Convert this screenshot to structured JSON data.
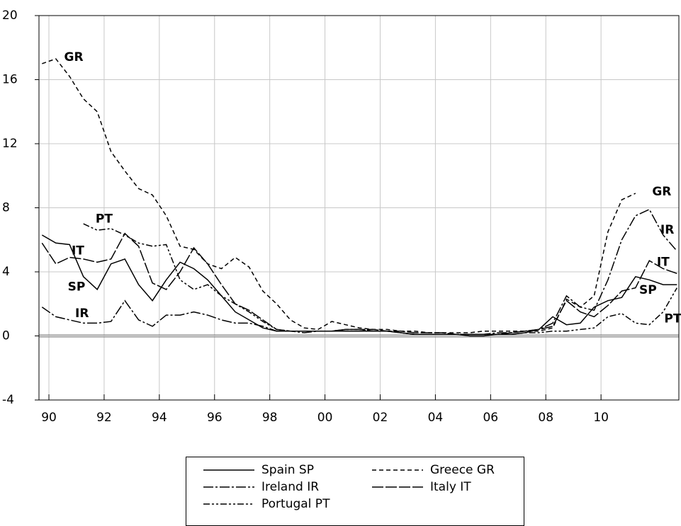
{
  "chart_data": {
    "type": "line",
    "x": [
      1989.75,
      1990.25,
      1990.75,
      1991.25,
      1991.75,
      1992.25,
      1992.75,
      1993.25,
      1993.75,
      1994.25,
      1994.75,
      1995.25,
      1995.75,
      1996.25,
      1996.75,
      1997.25,
      1997.75,
      1998.25,
      1998.75,
      1999.25,
      1999.75,
      2000.25,
      2000.75,
      2001.25,
      2001.75,
      2002.25,
      2002.75,
      2003.25,
      2003.75,
      2004.25,
      2004.75,
      2005.25,
      2005.75,
      2006.25,
      2006.75,
      2007.25,
      2007.75,
      2008.25,
      2008.75,
      2009.25,
      2009.75,
      2010.25,
      2010.75,
      2011.25,
      2011.75,
      2012.25,
      2012.75
    ],
    "xlim": [
      1989.64,
      2012.82
    ],
    "xticks": [
      {
        "value": 1990,
        "label": "90"
      },
      {
        "value": 1992,
        "label": "92"
      },
      {
        "value": 1994,
        "label": "94"
      },
      {
        "value": 1996,
        "label": "96"
      },
      {
        "value": 1998,
        "label": "98"
      },
      {
        "value": 2000,
        "label": "00"
      },
      {
        "value": 2002,
        "label": "02"
      },
      {
        "value": 2004,
        "label": "04"
      },
      {
        "value": 2006,
        "label": "06"
      },
      {
        "value": 2008,
        "label": "08"
      },
      {
        "value": 2010,
        "label": "10"
      }
    ],
    "ylim": [
      -4,
      20
    ],
    "yticks": [
      -4,
      0,
      4,
      8,
      12,
      16,
      20
    ],
    "grid": true,
    "series": [
      {
        "name": "Spain SP",
        "color": "#000000",
        "dash": "none",
        "values": [
          6.3,
          5.8,
          5.7,
          3.7,
          2.9,
          4.5,
          4.8,
          3.2,
          2.2,
          3.5,
          4.6,
          4.2,
          3.5,
          2.5,
          1.5,
          1.0,
          0.5,
          0.3,
          0.3,
          0.3,
          0.3,
          0.3,
          0.3,
          0.3,
          0.3,
          0.3,
          0.2,
          0.1,
          0.1,
          0.1,
          0.1,
          0.0,
          0.0,
          0.1,
          0.1,
          0.2,
          0.4,
          1.2,
          0.7,
          0.8,
          1.8,
          2.2,
          2.4,
          3.7,
          3.5,
          3.2,
          3.2
        ]
      },
      {
        "name": "Greece GR",
        "color": "#000000",
        "dash": "6,4",
        "values": [
          17,
          17.3,
          16.2,
          14.8,
          14,
          11.5,
          10.3,
          9.2,
          8.8,
          7.5,
          5.6,
          5.4,
          4.5,
          4.2,
          4.9,
          4.3,
          2.8,
          2,
          1,
          0.5,
          0.4,
          0.9,
          0.7,
          0.5,
          0.4,
          0.4,
          0.3,
          0.3,
          0.2,
          0.2,
          0.2,
          0.2,
          0.3,
          0.3,
          0.3,
          0.3,
          0.3,
          0.5,
          2.3,
          1.8,
          2.5,
          6.5,
          8.5,
          8.9,
          null,
          null,
          null
        ]
      },
      {
        "name": "Ireland IR",
        "color": "#000000",
        "dash": "14,3,3,3",
        "values": [
          1.8,
          1.2,
          1.0,
          0.8,
          0.8,
          0.9,
          2.2,
          1.0,
          0.6,
          1.3,
          1.3,
          1.5,
          1.3,
          1.0,
          0.8,
          0.8,
          0.6,
          0.3,
          0.3,
          0.2,
          0.3,
          0.3,
          0.4,
          0.4,
          0.3,
          0.3,
          0.2,
          0.1,
          0.1,
          0.1,
          0.1,
          0.1,
          0.1,
          0.2,
          0.2,
          0.3,
          0.4,
          0.8,
          2.5,
          1.8,
          1.6,
          3.5,
          6.0,
          7.5,
          7.9,
          6.3,
          5.3
        ]
      },
      {
        "name": "Italy IT",
        "color": "#000000",
        "dash": "16,3",
        "values": [
          5.8,
          4.5,
          4.9,
          4.8,
          4.6,
          4.8,
          6.4,
          5.6,
          3.3,
          2.9,
          4.0,
          5.5,
          4.5,
          3.2,
          2.0,
          1.6,
          1.0,
          0.4,
          0.3,
          0.3,
          0.3,
          0.3,
          0.4,
          0.4,
          0.4,
          0.3,
          0.3,
          0.2,
          0.2,
          0.2,
          0.1,
          0.1,
          0.1,
          0.1,
          0.2,
          0.3,
          0.4,
          0.6,
          2.2,
          1.5,
          1.2,
          1.9,
          2.8,
          3.0,
          4.7,
          4.2,
          3.9
        ]
      },
      {
        "name": "Portugal PT",
        "color": "#000000",
        "dash": "9,3,3,3,3,3",
        "values": [
          null,
          null,
          null,
          7.0,
          6.6,
          6.7,
          6.3,
          5.8,
          5.6,
          5.7,
          3.5,
          2.9,
          3.2,
          2.5,
          2.0,
          1.5,
          0.9,
          0.4,
          0.3,
          0.3,
          0.3,
          0.3,
          0.4,
          0.4,
          0.3,
          0.3,
          0.2,
          0.1,
          0.1,
          0.1,
          0.1,
          0.1,
          0.1,
          0.1,
          0.1,
          0.2,
          0.2,
          0.3,
          0.3,
          0.4,
          0.5,
          1.2,
          1.4,
          0.8,
          0.7,
          1.5,
          3.0
        ]
      }
    ],
    "annotations": [
      {
        "text": "GR",
        "x": 1990.9,
        "y": 17.4
      },
      {
        "text": "PT",
        "x": 1992.0,
        "y": 7.3
      },
      {
        "text": "IT",
        "x": 1991.05,
        "y": 5.3
      },
      {
        "text": "SP",
        "x": 1991.0,
        "y": 3.05
      },
      {
        "text": "IR",
        "x": 1991.2,
        "y": 1.4
      },
      {
        "text": "GR",
        "x": 2012.2,
        "y": 9.0
      },
      {
        "text": "IR",
        "x": 2012.4,
        "y": 6.6
      },
      {
        "text": "IT",
        "x": 2012.25,
        "y": 4.6
      },
      {
        "text": "SP",
        "x": 2011.7,
        "y": 2.85
      },
      {
        "text": "PT",
        "x": 2012.6,
        "y": 1.05
      }
    ]
  }
}
